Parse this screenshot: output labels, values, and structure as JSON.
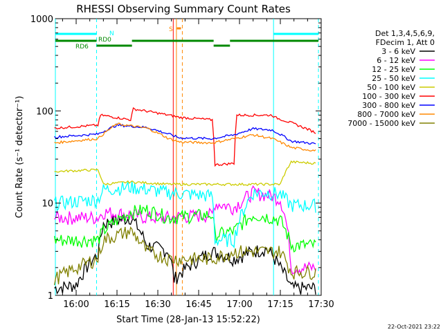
{
  "chart_data": {
    "type": "line",
    "title": "RHESSI Observing Summary Count Rates",
    "xlabel": "Start Time (28-Jan-13 15:52:22)",
    "ylabel": "Count Rate (s⁻¹ detector⁻¹)",
    "yscale": "log",
    "ylim": [
      1,
      1000
    ],
    "xlim": [
      "15:52:22",
      "17:30:00"
    ],
    "x_ticks": [
      "16:00",
      "16:15",
      "16:30",
      "16:45",
      "17:00",
      "17:15",
      "17:30"
    ],
    "y_ticks": [
      "1",
      "10",
      "100",
      "1000"
    ],
    "footer_date": "22-Oct-2021 23:22",
    "legend": {
      "position": "top-right",
      "header_lines": [
        "Det 1,3,4,5,6,9,",
        "FDecim 1, Att 0"
      ]
    },
    "series": [
      {
        "name": "3 - 6 keV",
        "color": "#000000",
        "x": [
          "15:52",
          "16:00",
          "16:08",
          "16:10",
          "16:20",
          "16:26",
          "16:34",
          "16:36",
          "16:50",
          "16:58",
          "17:05",
          "17:10",
          "17:15",
          "17:19",
          "17:28"
        ],
        "values": [
          1.2,
          1.3,
          2.8,
          6,
          7,
          3.5,
          3,
          1.5,
          3,
          2.5,
          3,
          3.2,
          2,
          1.2,
          1.2
        ]
      },
      {
        "name": "6 - 12 keV",
        "color": "#ff00ff",
        "x": [
          "15:52",
          "16:00",
          "16:08",
          "16:10",
          "16:20",
          "16:26",
          "16:34",
          "16:50",
          "16:51",
          "16:58",
          "17:05",
          "17:12",
          "17:15",
          "17:19",
          "17:28"
        ],
        "values": [
          7,
          7,
          7,
          8,
          7.5,
          7,
          7,
          7.5,
          10,
          9,
          13,
          12,
          11,
          2,
          2
        ]
      },
      {
        "name": "12 - 25 keV",
        "color": "#00ff00",
        "x": [
          "15:52",
          "16:08",
          "16:10",
          "16:20",
          "16:26",
          "16:34",
          "16:50",
          "16:51",
          "16:58",
          "17:05",
          "17:12",
          "17:15",
          "17:19",
          "17:28"
        ],
        "values": [
          4,
          4,
          5,
          8,
          8.5,
          7,
          7.5,
          4.5,
          5,
          7.5,
          7,
          6.5,
          3.5,
          3.5
        ]
      },
      {
        "name": "25 - 50 keV",
        "color": "#00ffff",
        "x": [
          "15:52",
          "16:08",
          "16:10",
          "16:20",
          "16:34",
          "16:50",
          "16:51",
          "16:58",
          "17:05",
          "17:12",
          "17:15",
          "17:19",
          "17:28"
        ],
        "values": [
          10,
          11,
          14,
          15,
          13,
          12,
          4,
          4,
          13,
          13,
          12.5,
          9.5,
          9.5
        ]
      },
      {
        "name": "50 - 100 keV",
        "color": "#cccc00",
        "x": [
          "15:52",
          "16:08",
          "16:10",
          "16:20",
          "16:34",
          "16:50",
          "16:51",
          "16:58",
          "17:05",
          "17:12",
          "17:15",
          "17:19",
          "17:28"
        ],
        "values": [
          22,
          23,
          16,
          17,
          16,
          16,
          16,
          16,
          16,
          16,
          16,
          28,
          27
        ]
      },
      {
        "name": "100 - 300 keV",
        "color": "#ff0000",
        "x": [
          "15:52",
          "16:08",
          "16:09",
          "16:20",
          "16:21",
          "16:34",
          "16:38",
          "16:50",
          "16:51",
          "16:58",
          "16:59",
          "17:12",
          "17:13",
          "17:28"
        ],
        "values": [
          65,
          70,
          90,
          80,
          105,
          90,
          85,
          80,
          26,
          27,
          90,
          90,
          85,
          58
        ]
      },
      {
        "name": "300 - 800 keV",
        "color": "#0000ff",
        "x": [
          "15:52",
          "16:08",
          "16:15",
          "16:26",
          "16:34",
          "16:38",
          "16:50",
          "16:58",
          "17:05",
          "17:12",
          "17:19",
          "17:28"
        ],
        "values": [
          52,
          56,
          70,
          66,
          56,
          51,
          50,
          55,
          64,
          62,
          47,
          44
        ]
      },
      {
        "name": "800 - 7000 keV",
        "color": "#ff8800",
        "x": [
          "15:52",
          "16:08",
          "16:15",
          "16:26",
          "16:34",
          "16:38",
          "16:50",
          "16:58",
          "17:05",
          "17:12",
          "17:19",
          "17:28"
        ],
        "values": [
          45,
          50,
          72,
          65,
          50,
          46,
          45,
          50,
          55,
          50,
          40,
          37
        ]
      },
      {
        "name": "7000 - 15000 keV",
        "color": "#808000",
        "x": [
          "15:52",
          "16:08",
          "16:10",
          "16:20",
          "16:26",
          "16:34",
          "16:50",
          "16:58",
          "17:05",
          "17:12",
          "17:15",
          "17:19",
          "17:28"
        ],
        "values": [
          1.5,
          2.5,
          4,
          5,
          3,
          2.5,
          2.5,
          3,
          3,
          3,
          3,
          1.8,
          1.8
        ]
      }
    ],
    "vertical_markers": [
      {
        "time": "15:52:22",
        "color": "#00ffff",
        "style": "solid"
      },
      {
        "time": "16:07:30",
        "color": "#00ffff",
        "style": "dashed"
      },
      {
        "time": "16:35:40",
        "color": "#ff0000",
        "style": "solid"
      },
      {
        "time": "16:36:50",
        "color": "#ff8800",
        "style": "solid"
      },
      {
        "time": "16:39:00",
        "color": "#ff8800",
        "style": "dashed"
      },
      {
        "time": "17:12:30",
        "color": "#00ffff",
        "style": "solid"
      },
      {
        "time": "17:29:00",
        "color": "#00ffff",
        "style": "dashed"
      }
    ],
    "flag_bars": [
      {
        "label": "N",
        "color": "#00ffff",
        "segments": [
          [
            "15:52:22",
            "16:07:30"
          ],
          [
            "17:12:30",
            "17:29:00"
          ]
        ]
      },
      {
        "label": "RD0",
        "color": "#008800",
        "segments": [
          [
            "15:52:22",
            "16:07:30"
          ],
          [
            "16:20:30",
            "16:50:30"
          ],
          [
            "16:56:30",
            "17:29:00"
          ]
        ]
      },
      {
        "label": "RD6",
        "color": "#008800",
        "segments": [
          [
            "16:07:30",
            "16:20:30"
          ],
          [
            "16:50:30",
            "16:56:30"
          ]
        ]
      },
      {
        "label": "S",
        "color": "#ff8800",
        "segments": [
          [
            "16:37:00",
            "16:38:30"
          ]
        ]
      }
    ]
  }
}
